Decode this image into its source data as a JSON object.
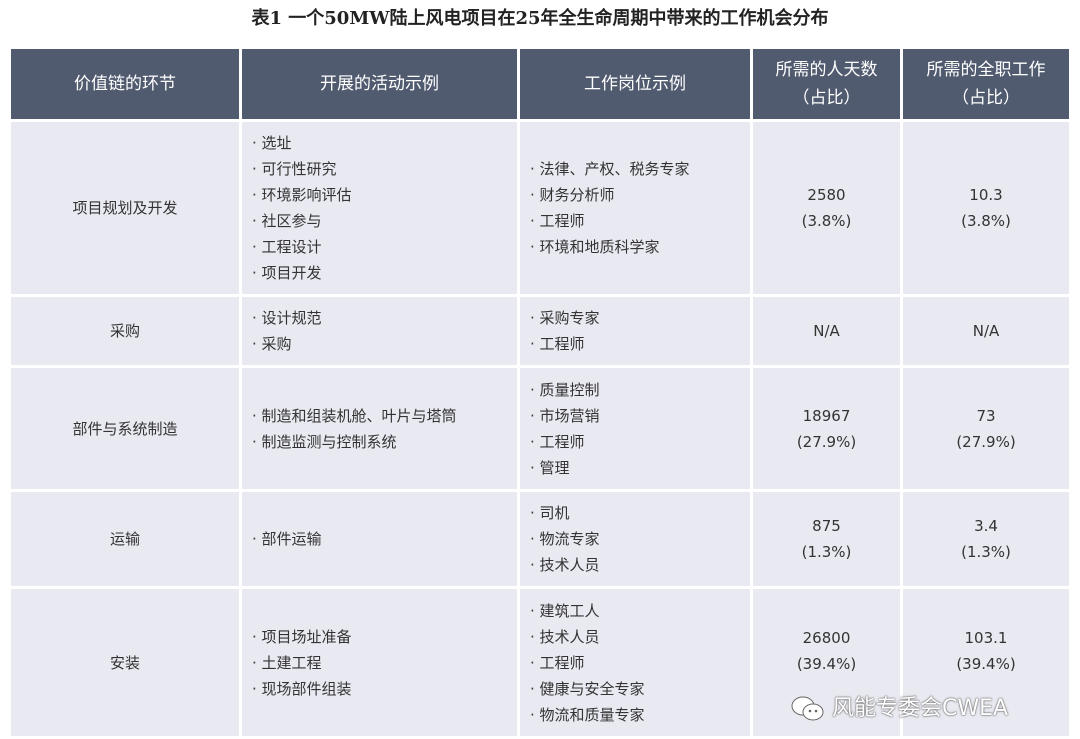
{
  "title": "表1 一个50MW陆上风电项目在25年全生命周期中带来的工作机会分布",
  "headers": [
    "价值链的环节",
    "开展的活动示例",
    "工作岗位示例",
    "所需的人天数\n（占比）",
    "所需的全职工作\n（占比）"
  ],
  "rows": [
    {
      "stage": "项目规划及开发",
      "activities": [
        "· 选址",
        "· 可行性研究",
        "· 环境影响评估",
        "· 社区参与",
        "· 工程设计",
        "· 项目开发"
      ],
      "jobs": [
        "· 法律、产权、税务专家",
        "· 财务分析师",
        "· 工程师",
        "· 环境和地质科学家"
      ],
      "days": "2580",
      "days_pct": "(3.8%)",
      "fte": "10.3",
      "fte_pct": "(3.8%)"
    },
    {
      "stage": "采购",
      "activities": [
        "· 设计规范",
        "· 采购"
      ],
      "jobs": [
        "· 采购专家",
        "· 工程师"
      ],
      "days": "N/A",
      "days_pct": "",
      "fte": "N/A",
      "fte_pct": ""
    },
    {
      "stage": "部件与系统制造",
      "activities": [
        "· 制造和组装机舱、叶片与塔筒",
        "· 制造监测与控制系统"
      ],
      "jobs": [
        "· 质量控制",
        "· 市场营销",
        "· 工程师",
        "· 管理"
      ],
      "days": "18967",
      "days_pct": "(27.9%)",
      "fte": "73",
      "fte_pct": "(27.9%)"
    },
    {
      "stage": "运输",
      "activities": [
        "· 部件运输"
      ],
      "jobs": [
        "· 司机",
        "· 物流专家",
        "· 技术人员"
      ],
      "days": "875",
      "days_pct": "(1.3%)",
      "fte": "3.4",
      "fte_pct": "(1.3%)"
    },
    {
      "stage": "安装",
      "activities": [
        "· 项目场址准备",
        "· 土建工程",
        "· 现场部件组装"
      ],
      "jobs": [
        "· 建筑工人",
        "· 技术人员",
        "· 工程师",
        "· 健康与安全专家",
        "· 物流和质量专家"
      ],
      "days": "26800",
      "days_pct": "(39.4%)",
      "fte": "103.1",
      "fte_pct": "(39.4%)"
    }
  ],
  "watermark": "风能专委会CWEA"
}
